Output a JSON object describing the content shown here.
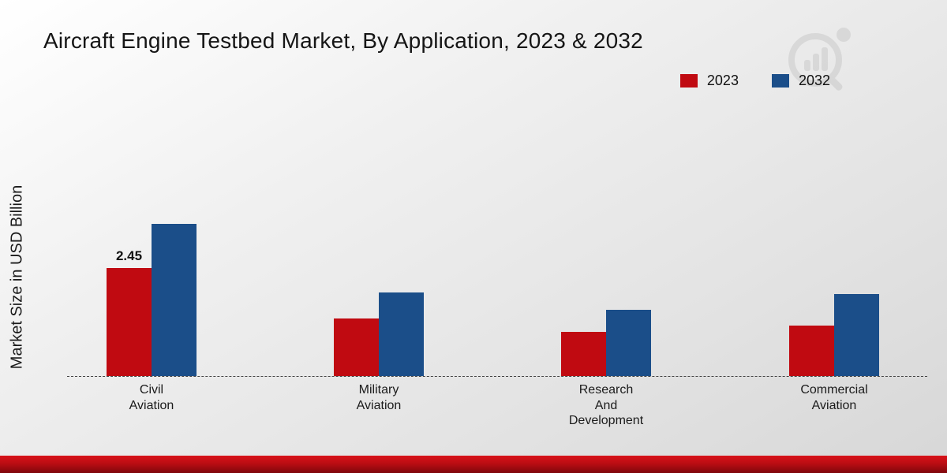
{
  "chart_data": {
    "type": "bar",
    "title": "Aircraft Engine Testbed Market, By Application, 2023 & 2032",
    "ylabel": "Market Size in USD Billion",
    "xlabel": "",
    "ylim": [
      0,
      4
    ],
    "grid": false,
    "legend_position": "top-right",
    "baseline_style": "dashed",
    "categories": [
      "Civil Aviation",
      "Military Aviation",
      "Research And Development",
      "Commercial Aviation"
    ],
    "category_label_lines": [
      [
        "Civil",
        "Aviation"
      ],
      [
        "Military",
        "Aviation"
      ],
      [
        "Research",
        "And",
        "Development"
      ],
      [
        "Commercial",
        "Aviation"
      ]
    ],
    "series": [
      {
        "name": "2023",
        "color": "#c00a11",
        "values": [
          2.45,
          1.3,
          1.0,
          1.15
        ]
      },
      {
        "name": "2032",
        "color": "#1b4e89",
        "values": [
          3.45,
          1.9,
          1.5,
          1.85
        ]
      }
    ],
    "bar_labels": [
      {
        "series_index": 0,
        "category_index": 0,
        "text": "2.45"
      }
    ]
  },
  "watermark": {
    "name": "market-research-logo"
  },
  "footer": {
    "color_top": "#d81219",
    "color_bottom": "#7f070c"
  }
}
